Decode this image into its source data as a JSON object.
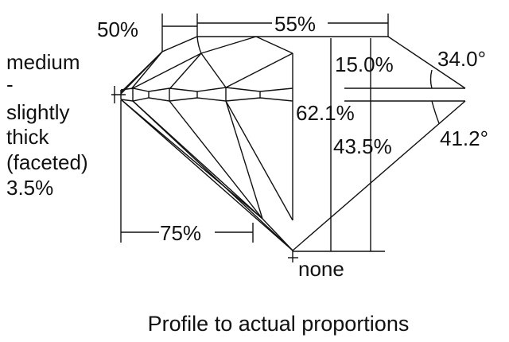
{
  "labels": {
    "crown_length": "50%",
    "table": "55%",
    "crown_height": "15.0%",
    "crown_angle": "34.0°",
    "total_depth": "62.1%",
    "pavilion_depth": "43.5%",
    "pavilion_angle": "41.2°",
    "lower_half": "75%",
    "culet": "none",
    "girdle": [
      "medium",
      "-",
      "slightly",
      "thick",
      "(faceted)",
      "3.5%"
    ]
  },
  "caption": "Profile to actual proportions",
  "colors": {
    "line": "#111111",
    "background": "#ffffff"
  }
}
